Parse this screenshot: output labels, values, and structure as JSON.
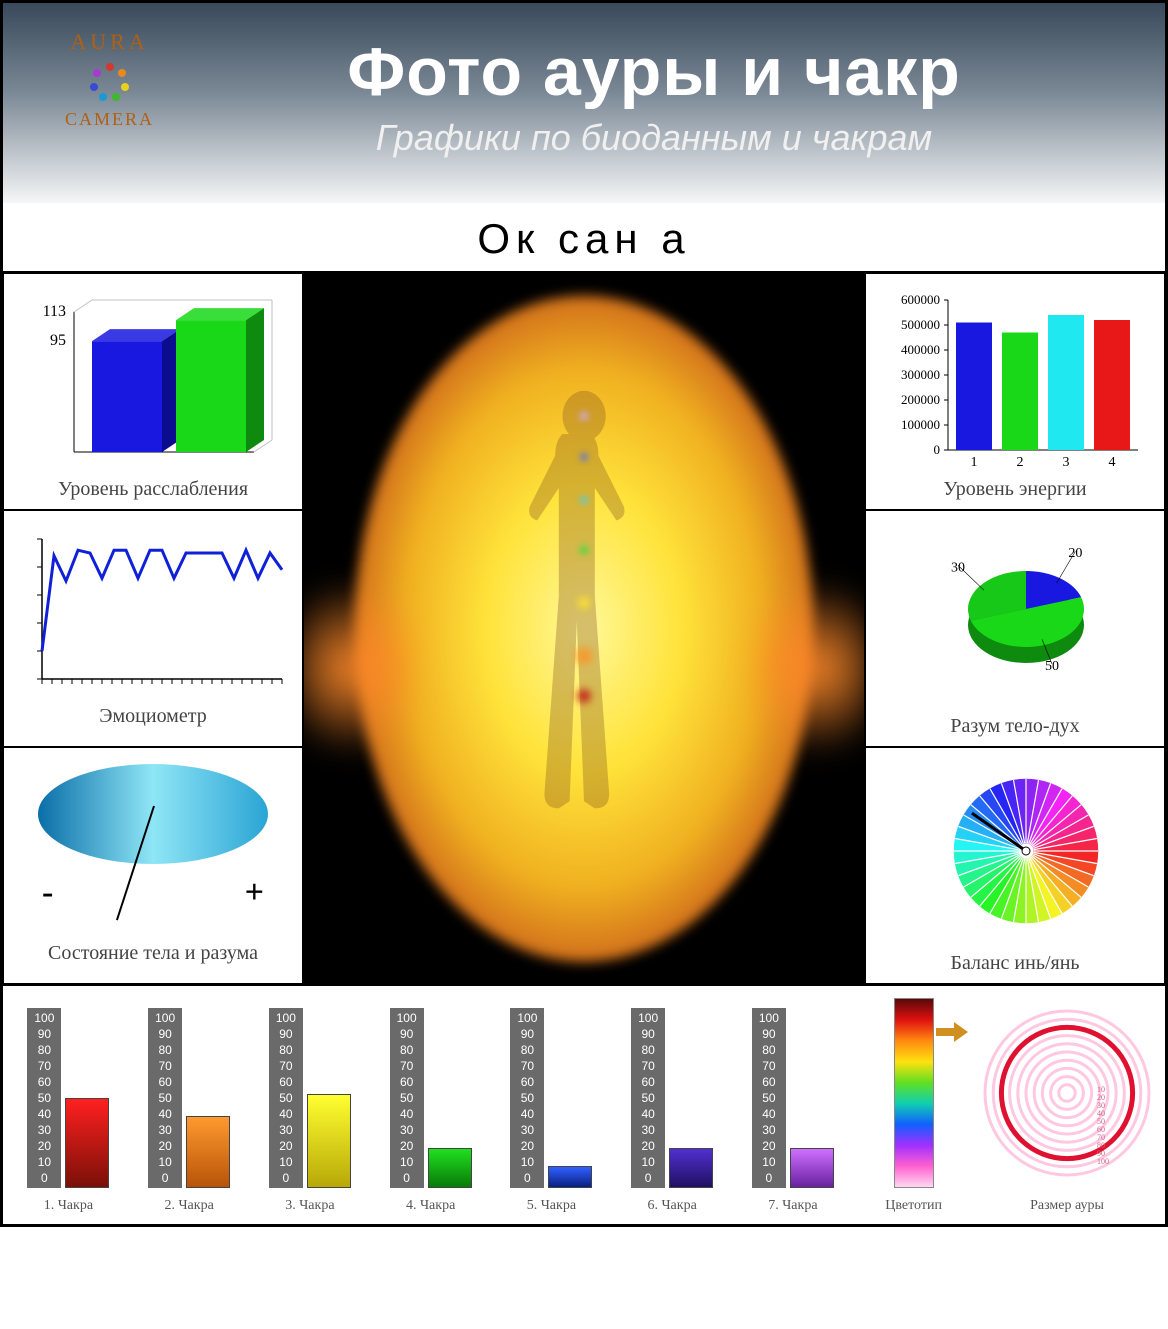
{
  "header": {
    "logo_top": "AURA",
    "logo_bottom": "CAMERA",
    "logo_dot_colors": [
      "#d23a2e",
      "#e88a1a",
      "#e6d21a",
      "#3eb82e",
      "#1a9ad2",
      "#3a4ad2",
      "#a83ad2"
    ],
    "title": "Фото  ауры и чакр",
    "subtitle": "Графики по биоданным и чакрам",
    "person_name": "Ок сан а"
  },
  "relaxation_chart": {
    "caption": "Уровень расслабления",
    "type": "bar3d",
    "y_labels": [
      "95",
      "113"
    ],
    "bars": [
      {
        "value": 95,
        "color": "#1818e0",
        "dark": "#0c0c90"
      },
      {
        "value": 113,
        "color": "#18d818",
        "dark": "#0e8a0e"
      }
    ],
    "ymax": 120,
    "grid_color": "#c0c0c0"
  },
  "emotiometer": {
    "caption": "Эмоциометр",
    "type": "line",
    "points": [
      20,
      88,
      70,
      92,
      90,
      72,
      92,
      92,
      72,
      92,
      92,
      72,
      90,
      90,
      90,
      90,
      72,
      92,
      72,
      90,
      78
    ],
    "ymax": 100,
    "line_color": "#1020d8",
    "axis_color": "#000000"
  },
  "body_mind_state": {
    "caption": "Состояние тела и разума",
    "type": "ellipse-gradient",
    "colors_left": "#0a6ea8",
    "colors_mid": "#8fe6f6",
    "colors_right": "#2aa4d4",
    "minus": "-",
    "plus": "+"
  },
  "energy_chart": {
    "caption": "Уровень энергии",
    "type": "bar",
    "y_ticks": [
      "0",
      "100000",
      "200000",
      "300000",
      "400000",
      "500000",
      "600000"
    ],
    "ymax": 600000,
    "x_labels": [
      "1",
      "2",
      "3",
      "4"
    ],
    "bars": [
      {
        "value": 510000,
        "color": "#1818e0"
      },
      {
        "value": 470000,
        "color": "#18d818"
      },
      {
        "value": 540000,
        "color": "#20e8f0"
      },
      {
        "value": 520000,
        "color": "#e81818"
      }
    ],
    "axis_color": "#000000"
  },
  "mind_body_spirit": {
    "caption": "Разум тело-дух",
    "type": "pie3d",
    "slices": [
      {
        "label": "20",
        "value": 20,
        "color": "#1818e0"
      },
      {
        "label": "50",
        "value": 50,
        "color": "#18d818"
      },
      {
        "label": "30",
        "value": 30,
        "color": "#18c818"
      }
    ],
    "dark_green": "#0e8a0e",
    "dark_blue": "#0c0c90"
  },
  "yin_yang": {
    "caption": "Баланс инь/янь",
    "type": "color-wheel",
    "needle_angle_deg": 215,
    "needle_color": "#000000"
  },
  "center_aura": {
    "background": "#000000",
    "glow_colors": [
      "#fff89a",
      "#ffe33a",
      "#f0b020",
      "#c95e1a"
    ],
    "side_glow": "#ff8a2a",
    "chakras_on_body": [
      {
        "top_pct": 19,
        "size": 14,
        "color": "#cfa8ff"
      },
      {
        "top_pct": 25,
        "size": 12,
        "color": "#4868ff"
      },
      {
        "top_pct": 31,
        "size": 12,
        "color": "#40d0ff"
      },
      {
        "top_pct": 38,
        "size": 14,
        "color": "#30e040"
      },
      {
        "top_pct": 45,
        "size": 20,
        "color": "#ffe030"
      },
      {
        "top_pct": 52,
        "size": 26,
        "color": "#ff9020"
      },
      {
        "top_pct": 58,
        "size": 22,
        "color": "#c01010"
      }
    ]
  },
  "chakra_bars": {
    "scale_labels": [
      "100",
      "90",
      "80",
      "70",
      "60",
      "50",
      "40",
      "30",
      "20",
      "10",
      "0"
    ],
    "ymax": 100,
    "items": [
      {
        "label": "1. Чакра",
        "value": 50,
        "gradient": [
          "#ff2020",
          "#7a1008"
        ]
      },
      {
        "label": "2. Чакра",
        "value": 40,
        "gradient": [
          "#ff9a30",
          "#b85408"
        ]
      },
      {
        "label": "3. Чакра",
        "value": 52,
        "gradient": [
          "#ffff30",
          "#b8a808"
        ]
      },
      {
        "label": "4. Чакра",
        "value": 22,
        "gradient": [
          "#20e020",
          "#087a08"
        ]
      },
      {
        "label": "5. Чакра",
        "value": 12,
        "gradient": [
          "#3060ff",
          "#082080"
        ]
      },
      {
        "label": "6. Чакра",
        "value": 22,
        "gradient": [
          "#5030d0",
          "#201060"
        ]
      },
      {
        "label": "7. Чакра",
        "value": 22,
        "gradient": [
          "#d070ff",
          "#6820a0"
        ]
      }
    ],
    "spectrum_label": "Цветотип",
    "spectrum_stops": [
      "#5a0808",
      "#e01010",
      "#ff8a10",
      "#ffe010",
      "#60e020",
      "#10d0b0",
      "#1060ff",
      "#a030ff",
      "#ff60d0",
      "#ffd8f0"
    ],
    "arrow_color": "#d09020",
    "arrow_at_pct": 18,
    "aura_size_label": "Размер ауры",
    "ring_labels": [
      "10",
      "20",
      "30",
      "40",
      "50",
      "60",
      "70",
      "80",
      "90",
      "100"
    ],
    "ring_color_light": "#ffc8e0",
    "ring_color_bold": "#e01030",
    "bold_ring_index": 2
  }
}
